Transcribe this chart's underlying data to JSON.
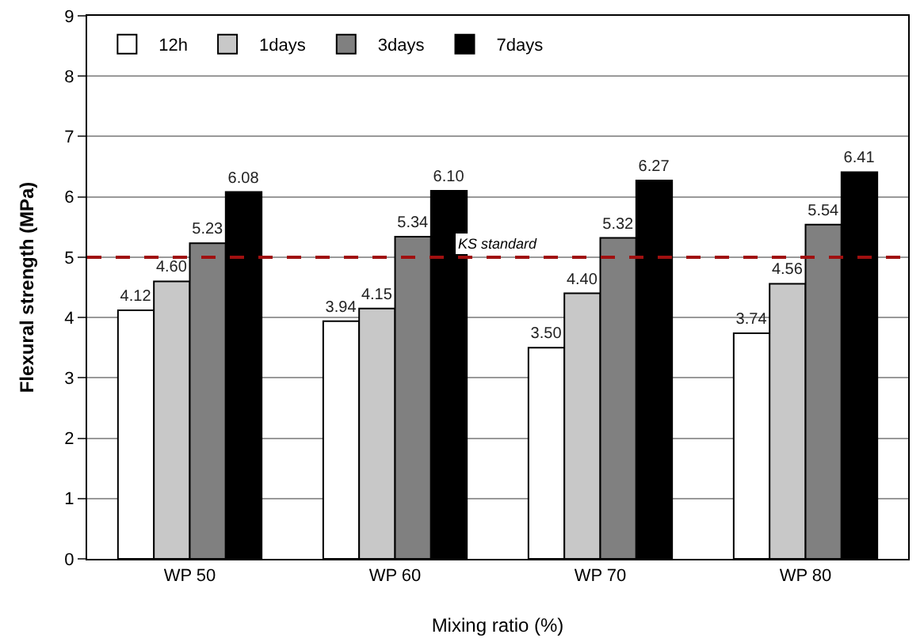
{
  "chart_data": {
    "type": "bar",
    "xlabel": "Mixing ratio (%)",
    "ylabel": "Flexural strength (MPa)",
    "categories": [
      "WP 50",
      "WP 60",
      "WP 70",
      "WP 80"
    ],
    "series": [
      {
        "name": "12h",
        "color": "#ffffff",
        "values": [
          4.12,
          3.94,
          3.5,
          3.74
        ],
        "value_labels": [
          "4.12",
          "3.94",
          "3.50",
          "3.74"
        ]
      },
      {
        "name": "1days",
        "color": "#c8c8c8",
        "values": [
          4.6,
          4.15,
          4.4,
          4.56
        ],
        "value_labels": [
          "4.60",
          "4.15",
          "4.40",
          "4.56"
        ]
      },
      {
        "name": "3days",
        "color": "#808080",
        "values": [
          5.23,
          5.34,
          5.32,
          5.54
        ],
        "value_labels": [
          "5.23",
          "5.34",
          "5.32",
          "5.54"
        ]
      },
      {
        "name": "7days",
        "color": "#000000",
        "values": [
          6.08,
          6.1,
          6.27,
          6.41
        ],
        "value_labels": [
          "6.08",
          "6.10",
          "6.27",
          "6.41"
        ]
      }
    ],
    "ylim": [
      0,
      9
    ],
    "yticks": [
      0,
      1,
      2,
      3,
      4,
      5,
      6,
      7,
      8,
      9
    ],
    "grid": "y",
    "legend": "top left",
    "ref_lines": [
      {
        "axis": "y",
        "value": 5,
        "label": "KS standard",
        "color": "#a01010",
        "line_style": "dashed"
      }
    ]
  }
}
